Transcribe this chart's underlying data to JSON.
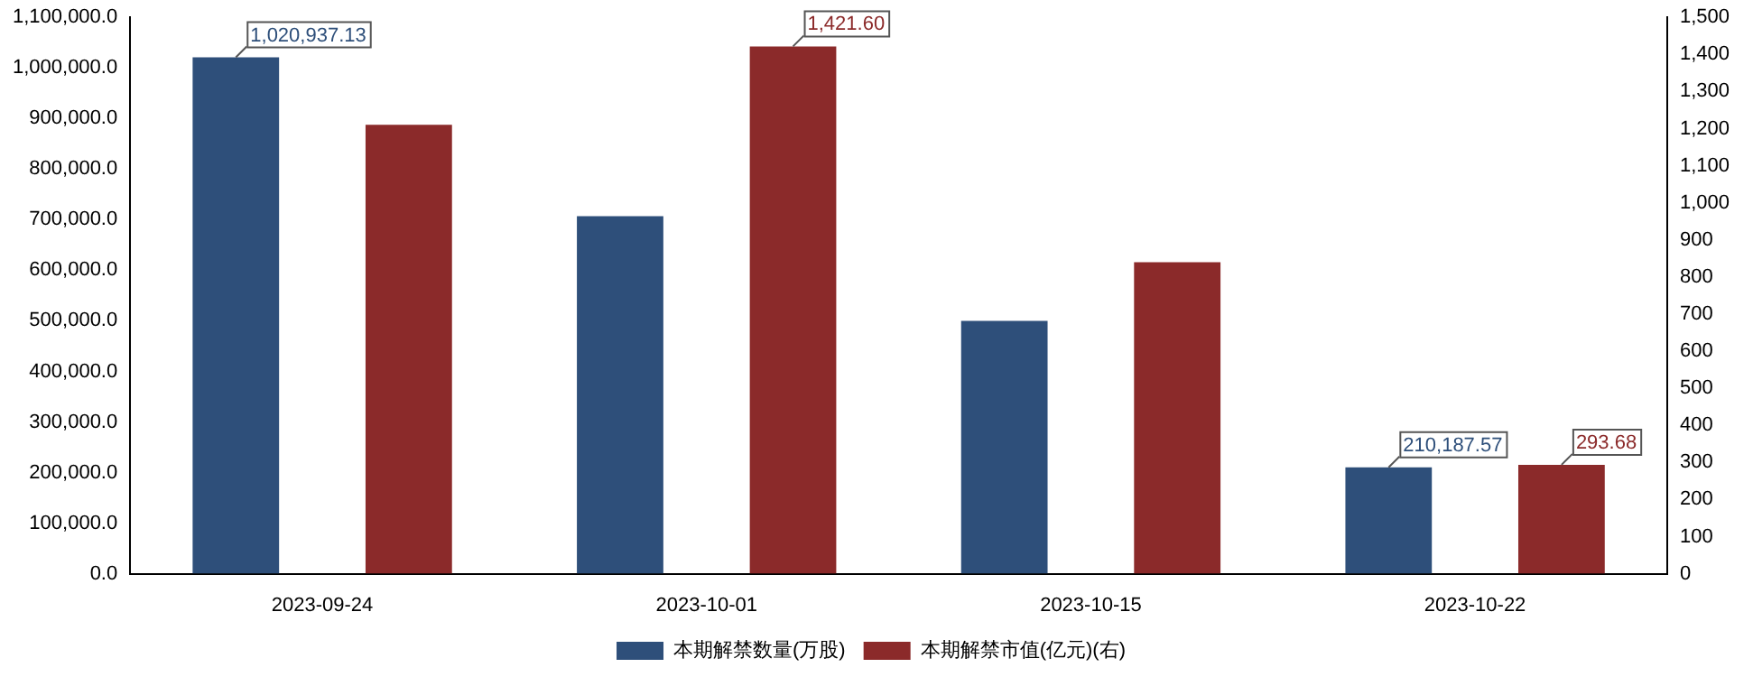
{
  "chart_data": {
    "type": "bar",
    "categories": [
      "2023-09-24",
      "2023-10-01",
      "2023-10-15",
      "2023-10-22"
    ],
    "series": [
      {
        "name": "本期解禁数量(万股)",
        "color": "#2e4f7a",
        "values": [
          1020937.13,
          707000,
          500000,
          210187.57
        ],
        "value_labels": [
          "1,020,937.13",
          null,
          null,
          "210,187.57"
        ]
      },
      {
        "name": "本期解禁市值(亿元)(右)",
        "color": "#8b2a2a",
        "axis": "y2",
        "values": [
          1210,
          1421.6,
          840,
          293.68
        ],
        "value_labels": [
          null,
          "1,421.60",
          null,
          "293.68"
        ]
      }
    ],
    "ylim": [
      0,
      1100000
    ],
    "yticks": [
      {
        "value": 0,
        "label": "0.0"
      },
      {
        "value": 100000,
        "label": "100,000.0"
      },
      {
        "value": 200000,
        "label": "200,000.0"
      },
      {
        "value": 300000,
        "label": "300,000.0"
      },
      {
        "value": 400000,
        "label": "400,000.0"
      },
      {
        "value": 500000,
        "label": "500,000.0"
      },
      {
        "value": 600000,
        "label": "600,000.0"
      },
      {
        "value": 700000,
        "label": "700,000.0"
      },
      {
        "value": 800000,
        "label": "800,000.0"
      },
      {
        "value": 900000,
        "label": "900,000.0"
      },
      {
        "value": 1000000,
        "label": "1,000,000.0"
      },
      {
        "value": 1100000,
        "label": "1,100,000.0"
      }
    ],
    "y2lim": [
      0,
      1500
    ],
    "y2ticks": [
      0,
      100,
      200,
      300,
      400,
      500,
      600,
      700,
      800,
      900,
      {
        "value": 1000,
        "label": "1,000"
      },
      {
        "value": 1100,
        "label": "1,100"
      },
      {
        "value": 1200,
        "label": "1,200"
      },
      {
        "value": 1300,
        "label": "1,300"
      },
      {
        "value": 1400,
        "label": "1,400"
      },
      {
        "value": 1500,
        "label": "1,500"
      }
    ],
    "grid": false,
    "legend": "bottom"
  }
}
